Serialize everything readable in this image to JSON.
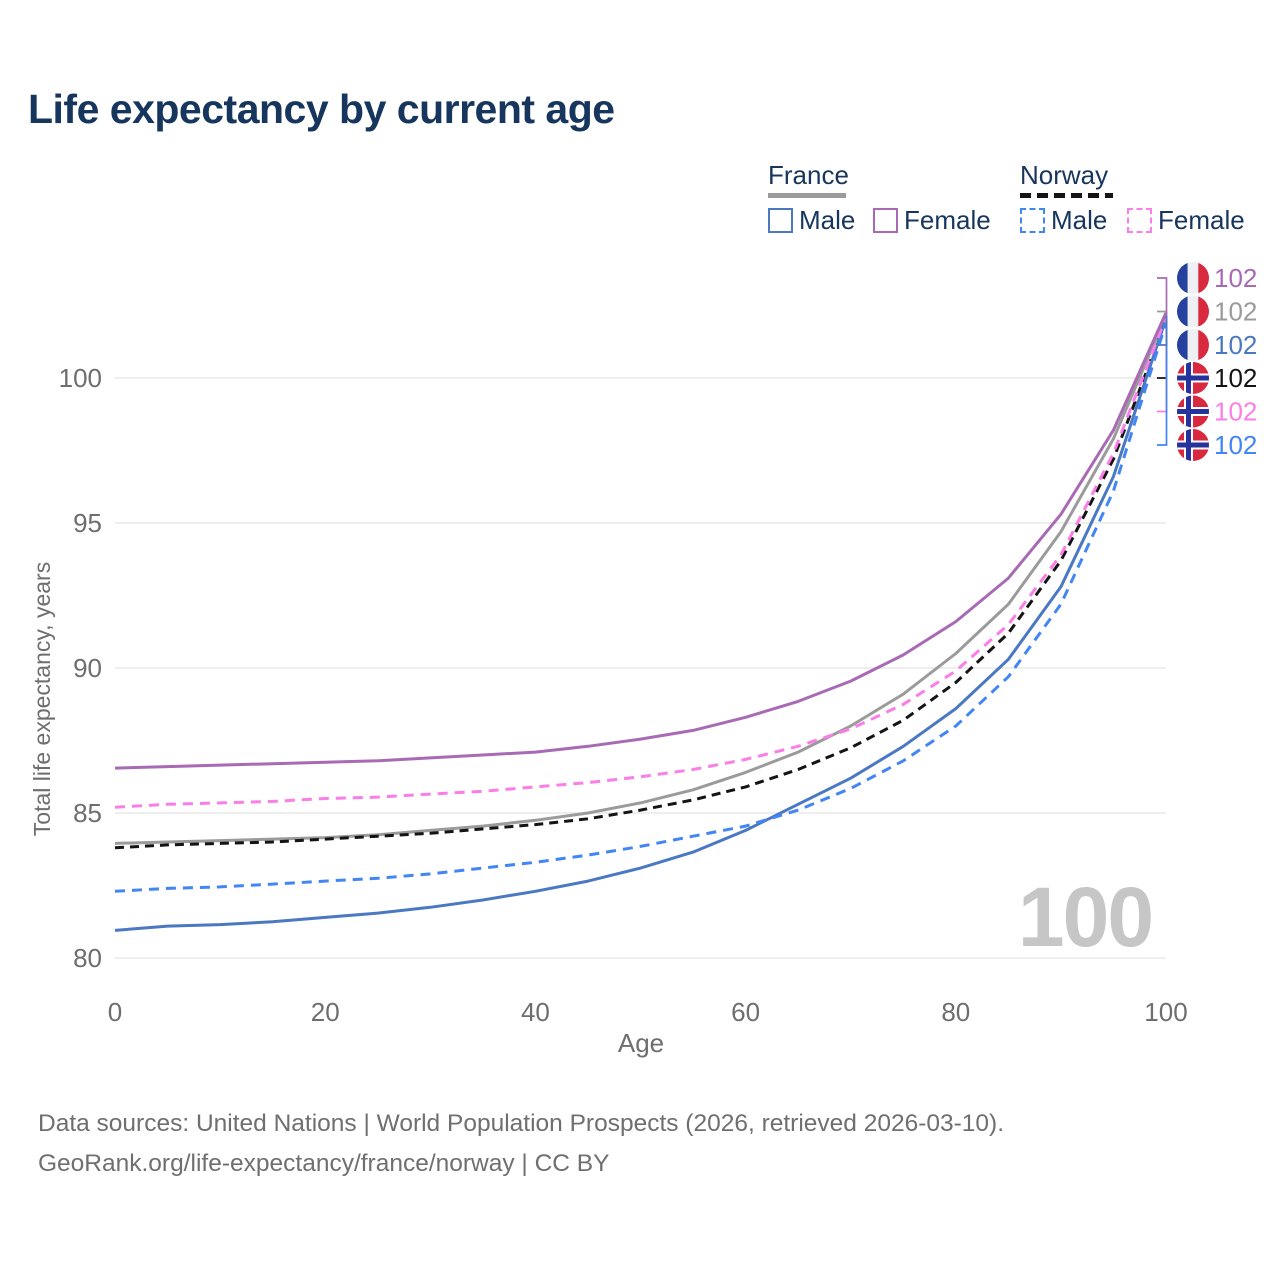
{
  "title": "Life expectancy by current age",
  "colors": {
    "title_text": "#17365d",
    "axis_text": "#6e6e6e",
    "grid": "#e8e8e8",
    "watermark": "#c6c6c6",
    "footer_text": "#6f6f6f",
    "france_male": "#4a78c2",
    "france_female": "#a86ab4",
    "france_total": "#9b9b9b",
    "norway_male": "#4285f5",
    "norway_female": "#fa7de8",
    "norway_total": "#141414",
    "flag_france_blue": "#27419e",
    "flag_red": "#d8293f",
    "flag_norway_blue": "#26339c",
    "flag_white": "#eef0f4"
  },
  "legend": {
    "groups": [
      {
        "country": "France",
        "underline_style": "solid",
        "underline_color": "#9b9b9b",
        "items": [
          {
            "label": "Male",
            "box_color": "#4a78c2",
            "box_style": "solid"
          },
          {
            "label": "Female",
            "box_color": "#a86ab4",
            "box_style": "solid"
          }
        ]
      },
      {
        "country": "Norway",
        "underline_style": "dashed",
        "underline_color": "#141414",
        "items": [
          {
            "label": "Male",
            "box_color": "#4285f5",
            "box_style": "dashed"
          },
          {
            "label": "Female",
            "box_color": "#fa7de8",
            "box_style": "dashed"
          }
        ]
      }
    ]
  },
  "chart_data": {
    "type": "line",
    "title": "Life expectancy by current age",
    "xlabel": "Age",
    "ylabel": "Total life expectancy, years",
    "x_ticks": [
      0,
      20,
      40,
      60,
      80,
      100
    ],
    "y_ticks": [
      80,
      85,
      90,
      95,
      100
    ],
    "xlim": [
      0,
      100
    ],
    "ylim": [
      79.6,
      102.6
    ],
    "grid": "horizontal",
    "legend_position": "top-right",
    "watermark": "100",
    "x": [
      0,
      5,
      10,
      15,
      20,
      25,
      30,
      35,
      40,
      45,
      50,
      55,
      60,
      65,
      70,
      75,
      80,
      85,
      90,
      95,
      100
    ],
    "series": [
      {
        "id": "france-female",
        "name": "France Female",
        "color": "#a86ab4",
        "dash": "solid",
        "flag": "france",
        "end_label": "102",
        "values": [
          86.55,
          86.6,
          86.65,
          86.7,
          86.75,
          86.8,
          86.9,
          87.0,
          87.1,
          87.3,
          87.55,
          87.85,
          88.3,
          88.85,
          89.55,
          90.45,
          91.6,
          93.1,
          95.3,
          98.2,
          102.25
        ]
      },
      {
        "id": "france-total",
        "name": "France",
        "color": "#9b9b9b",
        "dash": "solid",
        "flag": "france",
        "end_label": "102",
        "values": [
          83.95,
          84.0,
          84.05,
          84.1,
          84.15,
          84.25,
          84.4,
          84.55,
          84.75,
          85.0,
          85.35,
          85.8,
          86.4,
          87.1,
          88.0,
          89.1,
          90.5,
          92.2,
          94.7,
          97.9,
          102.15
        ]
      },
      {
        "id": "france-male",
        "name": "France Male",
        "color": "#4a78c2",
        "dash": "solid",
        "flag": "france",
        "end_label": "102",
        "values": [
          80.95,
          81.1,
          81.15,
          81.25,
          81.4,
          81.55,
          81.75,
          82.0,
          82.3,
          82.65,
          83.1,
          83.65,
          84.4,
          85.3,
          86.2,
          87.3,
          88.6,
          90.3,
          92.8,
          96.6,
          102.05
        ]
      },
      {
        "id": "norway-total",
        "name": "Norway",
        "color": "#141414",
        "dash": "dashed",
        "flag": "norway",
        "end_label": "102",
        "values": [
          83.8,
          83.9,
          83.95,
          84.0,
          84.1,
          84.2,
          84.3,
          84.45,
          84.6,
          84.8,
          85.1,
          85.45,
          85.9,
          86.5,
          87.25,
          88.2,
          89.5,
          91.2,
          93.7,
          97.2,
          102.0
        ]
      },
      {
        "id": "norway-female",
        "name": "Norway Female",
        "color": "#fa7de8",
        "dash": "dashed",
        "flag": "norway",
        "end_label": "102",
        "values": [
          85.2,
          85.3,
          85.35,
          85.4,
          85.5,
          85.55,
          85.65,
          85.75,
          85.9,
          86.05,
          86.25,
          86.5,
          86.85,
          87.3,
          87.9,
          88.75,
          89.9,
          91.5,
          93.9,
          97.4,
          102.1
        ]
      },
      {
        "id": "norway-male",
        "name": "Norway Male",
        "color": "#4285f5",
        "dash": "dashed",
        "flag": "norway",
        "end_label": "102",
        "values": [
          82.3,
          82.4,
          82.45,
          82.55,
          82.65,
          82.75,
          82.9,
          83.1,
          83.3,
          83.55,
          83.85,
          84.2,
          84.55,
          85.1,
          85.85,
          86.8,
          88.0,
          89.7,
          92.2,
          96.1,
          101.9
        ]
      }
    ],
    "draw_order": [
      "france-total",
      "norway-total",
      "france-male",
      "norway-male",
      "norway-female",
      "france-female"
    ],
    "end_label_order": [
      "france-female",
      "france-total",
      "france-male",
      "norway-total",
      "norway-female",
      "norway-male"
    ],
    "connector_draw_order": [
      "norway-total",
      "norway-female",
      "norway-male",
      "france-male",
      "france-total",
      "france-female"
    ]
  },
  "footer": {
    "line1": "Data sources: United Nations | World Population Prospects (2026, retrieved 2026-03-10).",
    "line2": "GeoRank.org/life-expectancy/france/norway | CC BY"
  }
}
